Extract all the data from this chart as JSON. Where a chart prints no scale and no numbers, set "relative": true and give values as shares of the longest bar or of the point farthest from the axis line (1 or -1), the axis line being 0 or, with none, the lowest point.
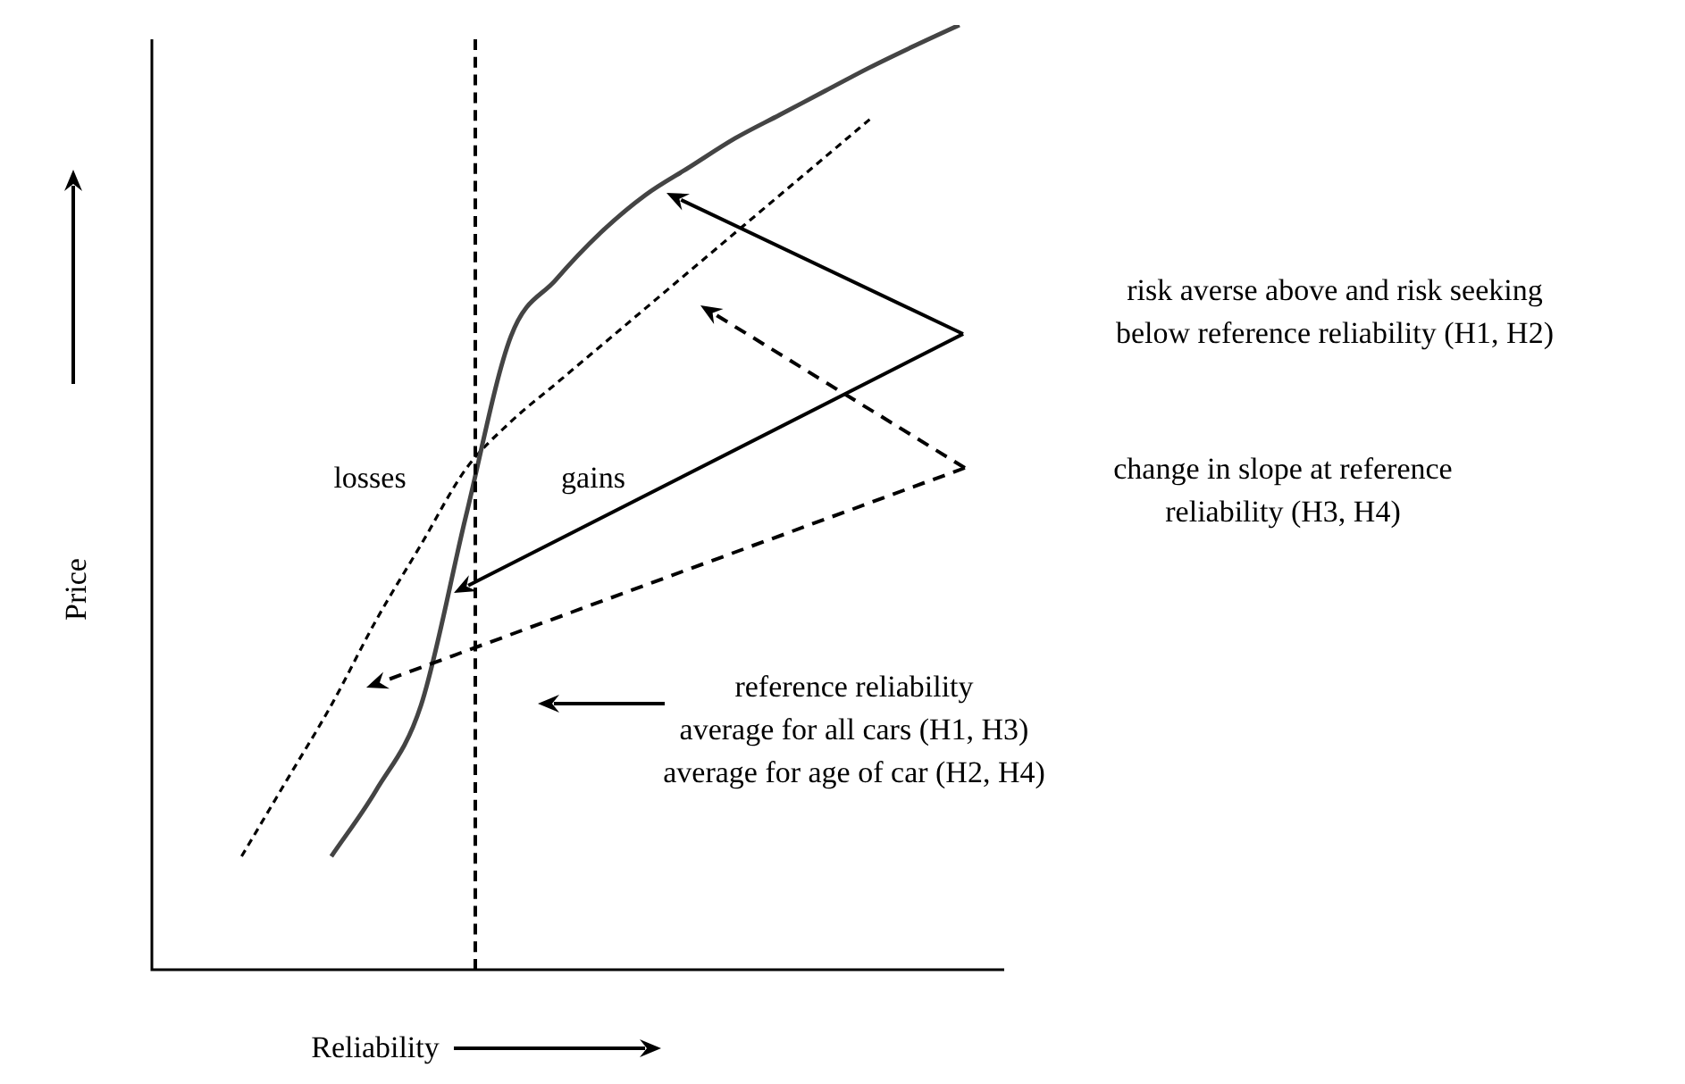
{
  "chart_data": {
    "type": "line",
    "relative": true,
    "xlabel": "Reliability",
    "ylabel": "Price",
    "categories": [
      null,
      null,
      null,
      null,
      null,
      null,
      null,
      null,
      null,
      null,
      null,
      null,
      null,
      null,
      null,
      null,
      null,
      null,
      null,
      null
    ],
    "series": [
      {
        "color": "#444444",
        "line_style": "solid",
        "values": [
          null,
          null,
          null,
          null,
          0.12,
          0.19,
          0.28,
          0.48,
          0.67,
          0.73,
          0.78,
          0.82,
          0.85,
          0.88,
          0.905,
          0.93,
          0.955,
          0.978,
          1.0,
          null
        ]
      },
      {
        "color": "#000000",
        "line_style": "dashed",
        "values": [
          null,
          null,
          0.12,
          0.2,
          0.28,
          0.37,
          0.45,
          0.53,
          0.58,
          0.62,
          0.66,
          0.7,
          0.74,
          0.78,
          0.82,
          0.86,
          0.9,
          null,
          null,
          null
        ]
      }
    ],
    "marker": "none",
    "legend": false,
    "annotations": [
      "losses",
      "gains",
      "risk averse above and risk seeking\nbelow reference reliability (H1, H2)",
      "change in slope at reference\nreliability (H3, H4)",
      "reference reliability\naverage for all cars (H1, H3)\naverage for age of car (H2, H4)"
    ]
  }
}
